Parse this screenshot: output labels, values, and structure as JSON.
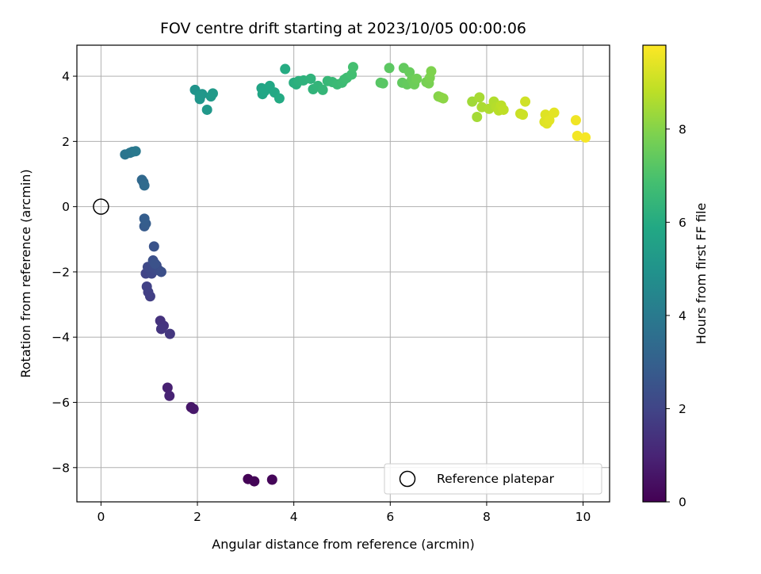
{
  "chart_data": {
    "type": "scatter",
    "title": "FOV centre drift starting at 2023/10/05 00:00:06",
    "xlabel": "Angular distance from reference (arcmin)",
    "ylabel": "Rotation from reference (arcmin)",
    "xlim": [
      -0.5,
      10.55
    ],
    "ylim": [
      -9.05,
      4.95
    ],
    "xticks": [
      0,
      2,
      4,
      6,
      8,
      10
    ],
    "xtick_labels": [
      "0",
      "2",
      "4",
      "6",
      "8",
      "10"
    ],
    "yticks": [
      -8,
      -6,
      -4,
      -2,
      0,
      2,
      4
    ],
    "ytick_labels": [
      "−8",
      "−6",
      "−4",
      "−2",
      "0",
      "2",
      "4"
    ],
    "grid": true,
    "legend_position": "lower-right",
    "legend_label": "Reference platepar",
    "reference_point": {
      "x": 0,
      "y": 0
    },
    "colorbar": {
      "label": "Hours from first FF file",
      "colormap": "viridis",
      "range": [
        0,
        9.8
      ],
      "ticks": [
        0,
        2,
        4,
        6,
        8
      ],
      "tick_labels": [
        "0",
        "2",
        "4",
        "6",
        "8"
      ]
    },
    "points": [
      {
        "x": 3.05,
        "y": -8.35,
        "c": 0.05
      },
      {
        "x": 3.18,
        "y": -8.42,
        "c": 0.1
      },
      {
        "x": 3.55,
        "y": -8.37,
        "c": 0.15
      },
      {
        "x": 1.87,
        "y": -6.15,
        "c": 0.6
      },
      {
        "x": 1.92,
        "y": -6.2,
        "c": 0.65
      },
      {
        "x": 1.38,
        "y": -5.55,
        "c": 0.9
      },
      {
        "x": 1.42,
        "y": -5.8,
        "c": 0.95
      },
      {
        "x": 1.23,
        "y": -3.5,
        "c": 1.4
      },
      {
        "x": 1.3,
        "y": -3.65,
        "c": 1.45
      },
      {
        "x": 1.25,
        "y": -3.75,
        "c": 1.5
      },
      {
        "x": 1.43,
        "y": -3.9,
        "c": 1.55
      },
      {
        "x": 1.02,
        "y": -2.75,
        "c": 1.8
      },
      {
        "x": 0.98,
        "y": -2.62,
        "c": 1.85
      },
      {
        "x": 0.95,
        "y": -2.45,
        "c": 1.9
      },
      {
        "x": 0.93,
        "y": -2.05,
        "c": 2.0
      },
      {
        "x": 1.0,
        "y": -1.95,
        "c": 2.05
      },
      {
        "x": 1.05,
        "y": -2.05,
        "c": 2.1
      },
      {
        "x": 0.97,
        "y": -1.85,
        "c": 2.15
      },
      {
        "x": 1.1,
        "y": -1.9,
        "c": 2.2
      },
      {
        "x": 1.15,
        "y": -1.8,
        "c": 2.25
      },
      {
        "x": 1.2,
        "y": -1.95,
        "c": 2.3
      },
      {
        "x": 1.25,
        "y": -2.0,
        "c": 2.35
      },
      {
        "x": 1.08,
        "y": -1.65,
        "c": 2.4
      },
      {
        "x": 1.12,
        "y": -1.75,
        "c": 2.45
      },
      {
        "x": 1.1,
        "y": -1.22,
        "c": 2.5
      },
      {
        "x": 0.9,
        "y": -0.6,
        "c": 2.8
      },
      {
        "x": 0.93,
        "y": -0.52,
        "c": 2.85
      },
      {
        "x": 0.9,
        "y": -0.37,
        "c": 2.9
      },
      {
        "x": 0.85,
        "y": 0.82,
        "c": 3.3
      },
      {
        "x": 0.88,
        "y": 0.75,
        "c": 3.35
      },
      {
        "x": 0.9,
        "y": 0.65,
        "c": 3.4
      },
      {
        "x": 0.5,
        "y": 1.6,
        "c": 3.8
      },
      {
        "x": 0.6,
        "y": 1.65,
        "c": 3.85
      },
      {
        "x": 0.65,
        "y": 1.68,
        "c": 3.9
      },
      {
        "x": 0.72,
        "y": 1.7,
        "c": 3.95
      },
      {
        "x": 1.95,
        "y": 3.58,
        "c": 5.0
      },
      {
        "x": 2.05,
        "y": 3.3,
        "c": 5.05
      },
      {
        "x": 2.1,
        "y": 3.45,
        "c": 5.1
      },
      {
        "x": 2.05,
        "y": 3.4,
        "c": 5.15
      },
      {
        "x": 2.2,
        "y": 2.97,
        "c": 5.2
      },
      {
        "x": 2.28,
        "y": 3.38,
        "c": 5.25
      },
      {
        "x": 2.32,
        "y": 3.47,
        "c": 5.3
      },
      {
        "x": 3.33,
        "y": 3.63,
        "c": 5.7
      },
      {
        "x": 3.35,
        "y": 3.45,
        "c": 5.75
      },
      {
        "x": 3.4,
        "y": 3.55,
        "c": 5.8
      },
      {
        "x": 3.5,
        "y": 3.7,
        "c": 5.85
      },
      {
        "x": 3.6,
        "y": 3.5,
        "c": 5.9
      },
      {
        "x": 3.7,
        "y": 3.32,
        "c": 5.95
      },
      {
        "x": 3.82,
        "y": 4.22,
        "c": 6.0
      },
      {
        "x": 4.0,
        "y": 3.8,
        "c": 6.1
      },
      {
        "x": 4.05,
        "y": 3.75,
        "c": 6.15
      },
      {
        "x": 4.1,
        "y": 3.85,
        "c": 6.2
      },
      {
        "x": 4.2,
        "y": 3.87,
        "c": 6.25
      },
      {
        "x": 4.35,
        "y": 3.92,
        "c": 6.3
      },
      {
        "x": 4.4,
        "y": 3.6,
        "c": 6.35
      },
      {
        "x": 4.5,
        "y": 3.7,
        "c": 6.4
      },
      {
        "x": 4.6,
        "y": 3.58,
        "c": 6.45
      },
      {
        "x": 4.7,
        "y": 3.85,
        "c": 6.5
      },
      {
        "x": 4.8,
        "y": 3.82,
        "c": 6.55
      },
      {
        "x": 4.9,
        "y": 3.75,
        "c": 6.6
      },
      {
        "x": 5.0,
        "y": 3.8,
        "c": 6.65
      },
      {
        "x": 5.05,
        "y": 3.9,
        "c": 6.7
      },
      {
        "x": 5.1,
        "y": 3.95,
        "c": 6.75
      },
      {
        "x": 5.2,
        "y": 4.05,
        "c": 6.8
      },
      {
        "x": 5.23,
        "y": 4.28,
        "c": 6.85
      },
      {
        "x": 5.8,
        "y": 3.8,
        "c": 7.2
      },
      {
        "x": 5.85,
        "y": 3.78,
        "c": 7.25
      },
      {
        "x": 5.98,
        "y": 4.25,
        "c": 7.3
      },
      {
        "x": 6.25,
        "y": 3.8,
        "c": 7.4
      },
      {
        "x": 6.28,
        "y": 4.25,
        "c": 7.42
      },
      {
        "x": 6.35,
        "y": 3.75,
        "c": 7.45
      },
      {
        "x": 6.4,
        "y": 4.12,
        "c": 7.5
      },
      {
        "x": 6.45,
        "y": 3.9,
        "c": 7.55
      },
      {
        "x": 6.5,
        "y": 3.75,
        "c": 7.6
      },
      {
        "x": 6.55,
        "y": 3.92,
        "c": 7.65
      },
      {
        "x": 6.75,
        "y": 3.82,
        "c": 7.75
      },
      {
        "x": 6.8,
        "y": 3.78,
        "c": 7.8
      },
      {
        "x": 6.82,
        "y": 3.95,
        "c": 7.85
      },
      {
        "x": 6.85,
        "y": 4.15,
        "c": 7.9
      },
      {
        "x": 7.0,
        "y": 3.38,
        "c": 8.0
      },
      {
        "x": 7.05,
        "y": 3.35,
        "c": 8.05
      },
      {
        "x": 7.1,
        "y": 3.32,
        "c": 8.1
      },
      {
        "x": 7.7,
        "y": 3.22,
        "c": 8.4
      },
      {
        "x": 7.8,
        "y": 2.75,
        "c": 8.45
      },
      {
        "x": 7.85,
        "y": 3.35,
        "c": 8.5
      },
      {
        "x": 7.9,
        "y": 3.05,
        "c": 8.55
      },
      {
        "x": 8.05,
        "y": 3.0,
        "c": 8.6
      },
      {
        "x": 8.15,
        "y": 3.22,
        "c": 8.65
      },
      {
        "x": 8.2,
        "y": 3.05,
        "c": 8.7
      },
      {
        "x": 8.25,
        "y": 2.95,
        "c": 8.75
      },
      {
        "x": 8.3,
        "y": 3.1,
        "c": 8.8
      },
      {
        "x": 8.35,
        "y": 2.97,
        "c": 8.85
      },
      {
        "x": 8.7,
        "y": 2.85,
        "c": 9.0
      },
      {
        "x": 8.75,
        "y": 2.82,
        "c": 9.05
      },
      {
        "x": 8.8,
        "y": 3.22,
        "c": 9.1
      },
      {
        "x": 9.2,
        "y": 2.6,
        "c": 9.3
      },
      {
        "x": 9.22,
        "y": 2.82,
        "c": 9.32
      },
      {
        "x": 9.25,
        "y": 2.55,
        "c": 9.35
      },
      {
        "x": 9.3,
        "y": 2.65,
        "c": 9.38
      },
      {
        "x": 9.4,
        "y": 2.88,
        "c": 9.4
      },
      {
        "x": 9.85,
        "y": 2.65,
        "c": 9.6
      },
      {
        "x": 9.88,
        "y": 2.17,
        "c": 9.65
      },
      {
        "x": 10.05,
        "y": 2.12,
        "c": 9.7
      }
    ]
  }
}
